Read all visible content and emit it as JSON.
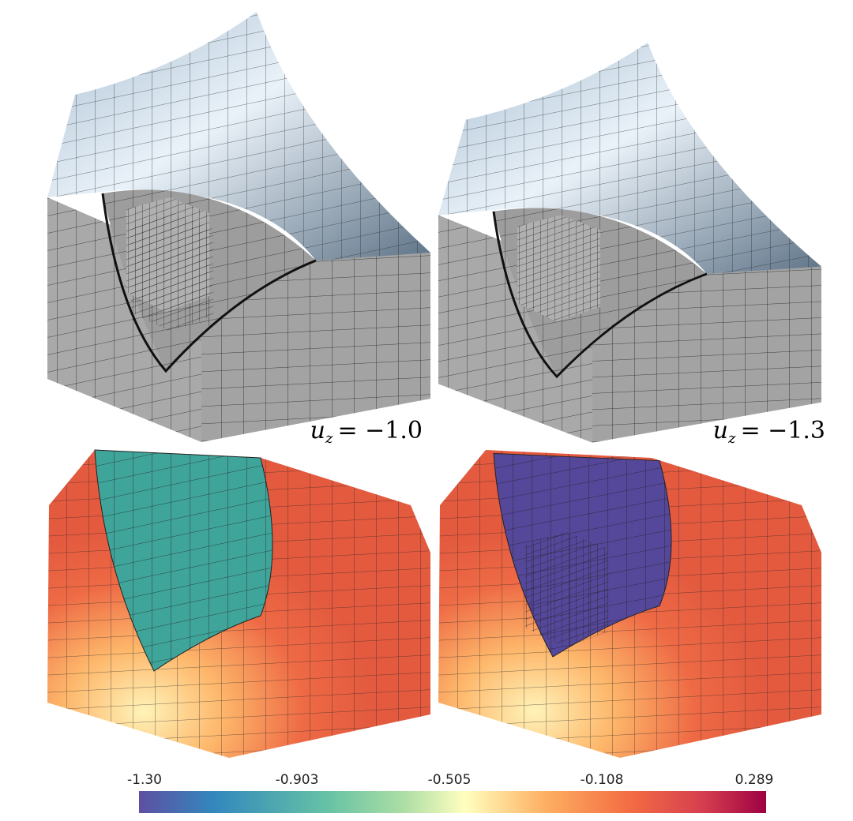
{
  "panels": [
    {
      "symbol": "u",
      "subscript": "z",
      "value": "= −1.0"
    },
    {
      "symbol": "u",
      "subscript": "z",
      "value": "= −1.3"
    }
  ],
  "colorbar": {
    "ticks": [
      "-1.30",
      "-0.903",
      "-0.505",
      "-0.108",
      "0.289"
    ]
  }
}
